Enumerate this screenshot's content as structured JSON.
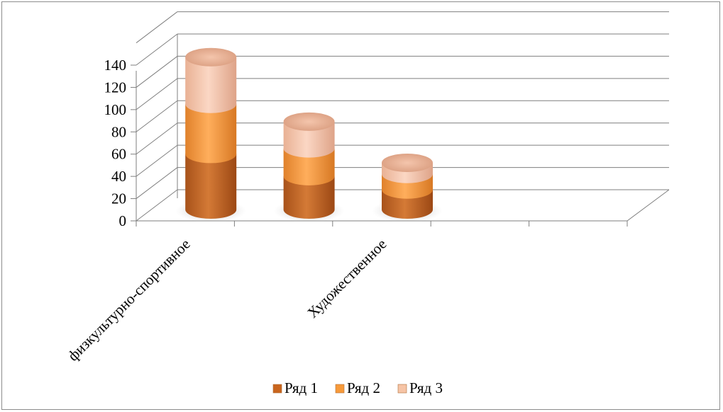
{
  "chart_data": {
    "type": "bar",
    "style": "3d-stacked-cylinder",
    "categories": [
      "физкультурно-спортивное",
      "",
      "Художественное",
      "",
      ""
    ],
    "series": [
      {
        "name": "Ряд 1",
        "values": [
          50,
          30,
          18,
          null,
          null
        ],
        "color": "#c9651e"
      },
      {
        "name": "Ряд 2",
        "values": [
          45,
          25,
          14,
          null,
          null
        ],
        "color": "#f79a3a"
      },
      {
        "name": "Ряд 3",
        "values": [
          42,
          24,
          10,
          null,
          null
        ],
        "color": "#f6c4a6"
      }
    ],
    "y_ticks": [
      "0",
      "20",
      "40",
      "60",
      "80",
      "100",
      "120",
      "140"
    ],
    "ylim": [
      0,
      140
    ],
    "grid": true,
    "legend_position": "bottom"
  }
}
